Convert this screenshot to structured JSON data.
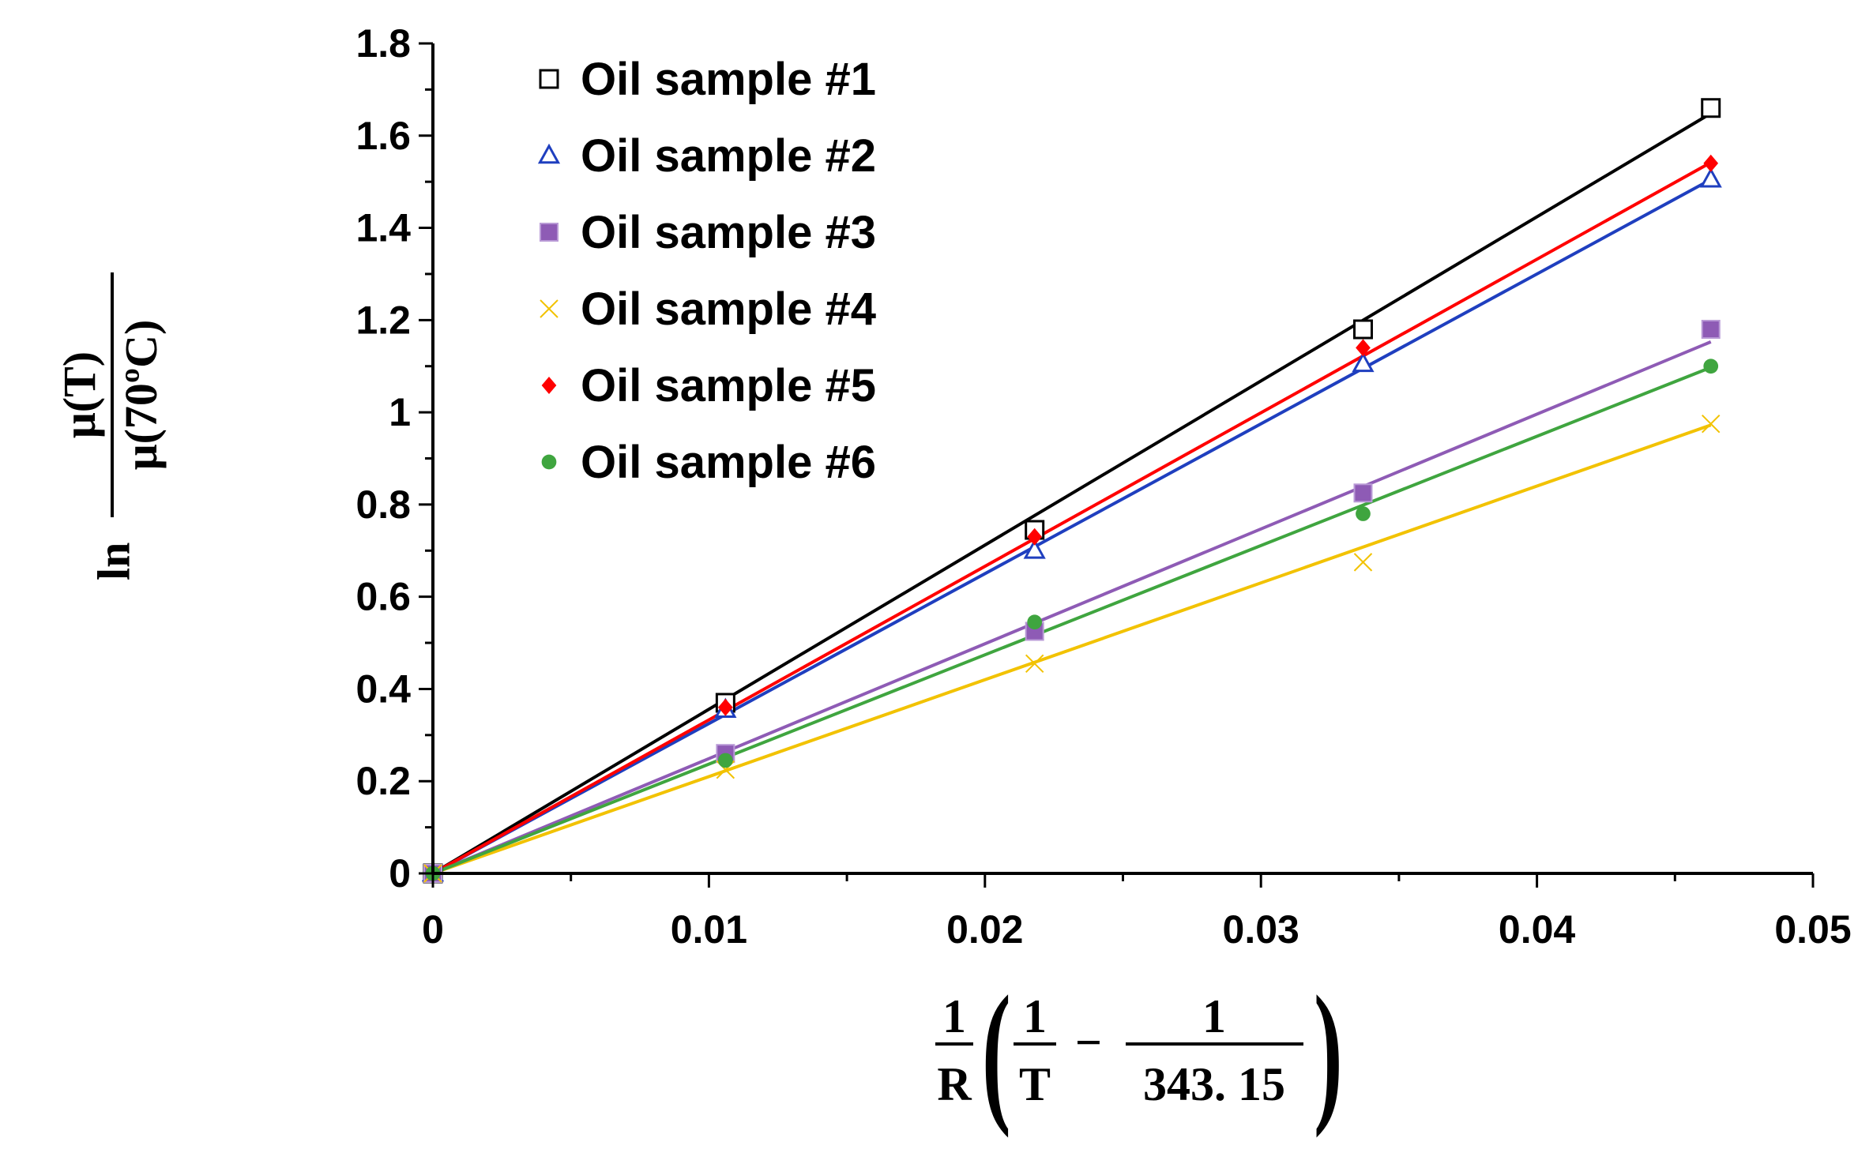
{
  "chart_data": {
    "type": "scatter",
    "title": "",
    "xlabel": {
      "prefix_num": "1",
      "prefix_den": "R",
      "inner_num_1": "1",
      "inner_den_1": "T",
      "minus": "−",
      "inner_num_2": "1",
      "inner_den_2": "343. 15",
      "left_paren": "(",
      "right_paren": ")"
    },
    "ylabel": {
      "ln": "ln",
      "numerator": "μ(T)",
      "denominator": "μ(70ºC)"
    },
    "xlim": [
      0,
      0.05
    ],
    "ylim": [
      0,
      1.8
    ],
    "x_ticks": [
      "0",
      "0.01",
      "0.02",
      "0.03",
      "0.04",
      "0.05"
    ],
    "y_ticks": [
      "0",
      "0.2",
      "0.4",
      "0.6",
      "0.8",
      "1",
      "1.2",
      "1.4",
      "1.6",
      "1.8"
    ],
    "grid": false,
    "legend_position": "top-left",
    "x": [
      0,
      0.0106,
      0.0218,
      0.0337,
      0.0463
    ],
    "series": [
      {
        "name": "Oil sample #1",
        "marker": "open-square",
        "color": "#000000",
        "values": [
          0,
          0.37,
          0.745,
          1.18,
          1.66
        ],
        "fit_slope": 35.6
      },
      {
        "name": "Oil sample #2",
        "marker": "open-triangle",
        "color": "#1f3fbf",
        "values": [
          0,
          0.355,
          0.7,
          1.105,
          1.505
        ],
        "fit_slope": 32.5
      },
      {
        "name": "Oil sample #3",
        "marker": "square",
        "color": "#8e5bb5",
        "values": [
          0,
          0.26,
          0.525,
          0.825,
          1.18
        ],
        "fit_slope": 24.9
      },
      {
        "name": "Oil sample #4",
        "marker": "x",
        "color": "#f2c200",
        "values": [
          0,
          0.225,
          0.455,
          0.675,
          0.975
        ],
        "fit_slope": 21.0
      },
      {
        "name": "Oil sample #5",
        "marker": "diamond",
        "color": "#ff0000",
        "values": [
          0,
          0.36,
          0.73,
          1.14,
          1.54
        ],
        "fit_slope": 33.3
      },
      {
        "name": "Oil sample #6",
        "marker": "circle",
        "color": "#3fa53f",
        "values": [
          0,
          0.245,
          0.545,
          0.78,
          1.1
        ],
        "fit_slope": 23.7
      }
    ]
  }
}
